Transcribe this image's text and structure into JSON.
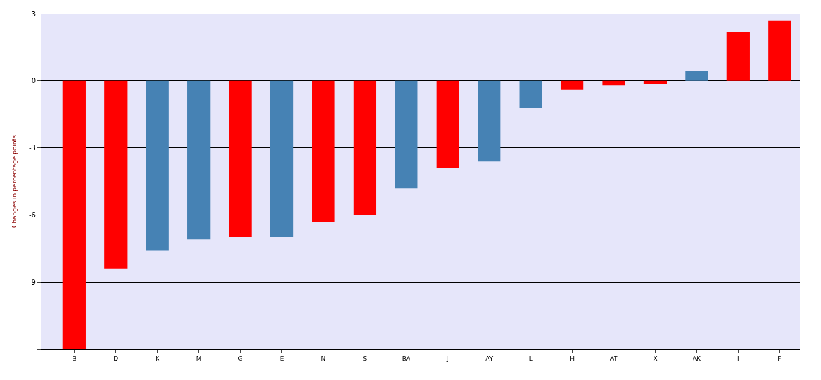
{
  "chart_data": {
    "type": "bar",
    "ylabel": "Changes in percentage points",
    "categories": [
      "B",
      "D",
      "K",
      "M",
      "G",
      "E",
      "N",
      "S",
      "BA",
      "J",
      "AY",
      "L",
      "H",
      "AT",
      "X",
      "AK",
      "I",
      "F"
    ],
    "values": [
      -12,
      -8.4,
      -7.6,
      -7.1,
      -7.0,
      -7.0,
      -6.3,
      -6.0,
      -4.8,
      -3.9,
      -3.6,
      -1.2,
      -0.4,
      -0.2,
      -0.15,
      0.45,
      2.2,
      2.7
    ],
    "colors": [
      "#ff0000",
      "#ff0000",
      "#4682b4",
      "#4682b4",
      "#ff0000",
      "#4682b4",
      "#ff0000",
      "#ff0000",
      "#4682b4",
      "#ff0000",
      "#4682b4",
      "#4682b4",
      "#ff0000",
      "#ff0000",
      "#ff0000",
      "#4682b4",
      "#ff0000",
      "#ff0000"
    ],
    "ylim": [
      -12,
      3
    ],
    "yticks": [
      3,
      0,
      -3,
      -6,
      -9,
      {
        "value": -12,
        "label": null
      }
    ],
    "grid": "y"
  }
}
